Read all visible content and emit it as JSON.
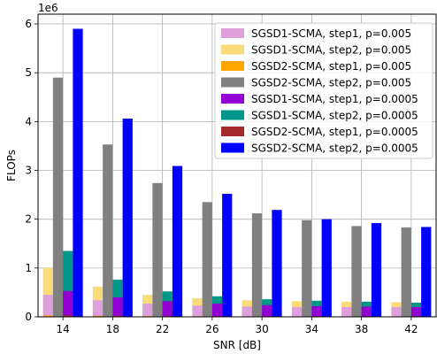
{
  "chart_data": {
    "type": "bar",
    "categories": [
      "14",
      "18",
      "22",
      "26",
      "30",
      "34",
      "38",
      "42"
    ],
    "xlabel": "SNR [dB]",
    "ylabel": "FLOPs",
    "y_scale_label": "1e6",
    "ylim": [
      0,
      6200000
    ],
    "yticks": [
      0,
      1,
      2,
      3,
      4,
      5,
      6
    ],
    "grid": true,
    "legend_position": "top-right",
    "groups": [
      {
        "members": [
          {
            "name": "SGSD1-SCMA, step1, p=0.005",
            "color": "#dda0dd",
            "values": [
              450000,
              340000,
              270000,
              230000,
              210000,
              200000,
              200000,
              200000
            ]
          },
          {
            "name": "SGSD1-SCMA, step2, p=0.005",
            "color": "#fadb7a",
            "values": [
              1000000,
              620000,
              450000,
              380000,
              340000,
              320000,
              310000,
              300000
            ]
          },
          {
            "name": "SGSD2-SCMA, step1, p=0.005",
            "color": "#ffa500",
            "values": [
              30000,
              20000,
              15000,
              12000,
              10000,
              10000,
              10000,
              10000
            ]
          }
        ]
      },
      {
        "members": [
          {
            "name": "SGSD2-SCMA, step2, p=0.005",
            "color": "#808080",
            "values": [
              4900000,
              3530000,
              2740000,
              2350000,
              2120000,
              1980000,
              1860000,
              1830000
            ]
          }
        ]
      },
      {
        "members": [
          {
            "name": "SGSD1-SCMA, step1, p=0.0005",
            "color": "#9400d3",
            "values": [
              530000,
              400000,
              320000,
              270000,
              240000,
              220000,
              210000,
              200000
            ]
          },
          {
            "name": "SGSD1-SCMA, step2, p=0.0005",
            "color": "#009688",
            "values": [
              1350000,
              760000,
              520000,
              420000,
              360000,
              330000,
              310000,
              290000
            ]
          },
          {
            "name": "SGSD2-SCMA, step1, p=0.0005",
            "color": "#a52a2a",
            "values": [
              30000,
              20000,
              15000,
              12000,
              10000,
              10000,
              10000,
              10000
            ]
          }
        ]
      },
      {
        "members": [
          {
            "name": "SGSD2-SCMA, step2, p=0.0005",
            "color": "#0000ff",
            "values": [
              5900000,
              4060000,
              3090000,
              2520000,
              2190000,
              2000000,
              1920000,
              1840000
            ]
          }
        ]
      }
    ],
    "legend": [
      {
        "label": "SGSD1-SCMA, step1, p=0.005",
        "color": "#dda0dd"
      },
      {
        "label": "SGSD1-SCMA, step2, p=0.005",
        "color": "#fadb7a"
      },
      {
        "label": "SGSD2-SCMA, step1, p=0.005",
        "color": "#ffa500"
      },
      {
        "label": "SGSD2-SCMA, step2, p=0.005",
        "color": "#808080"
      },
      {
        "label": "SGSD1-SCMA, step1, p=0.0005",
        "color": "#9400d3"
      },
      {
        "label": "SGSD1-SCMA, step2, p=0.0005",
        "color": "#009688"
      },
      {
        "label": "SGSD2-SCMA, step1, p=0.0005",
        "color": "#a52a2a"
      },
      {
        "label": "SGSD2-SCMA, step2, p=0.0005",
        "color": "#0000ff"
      }
    ]
  }
}
